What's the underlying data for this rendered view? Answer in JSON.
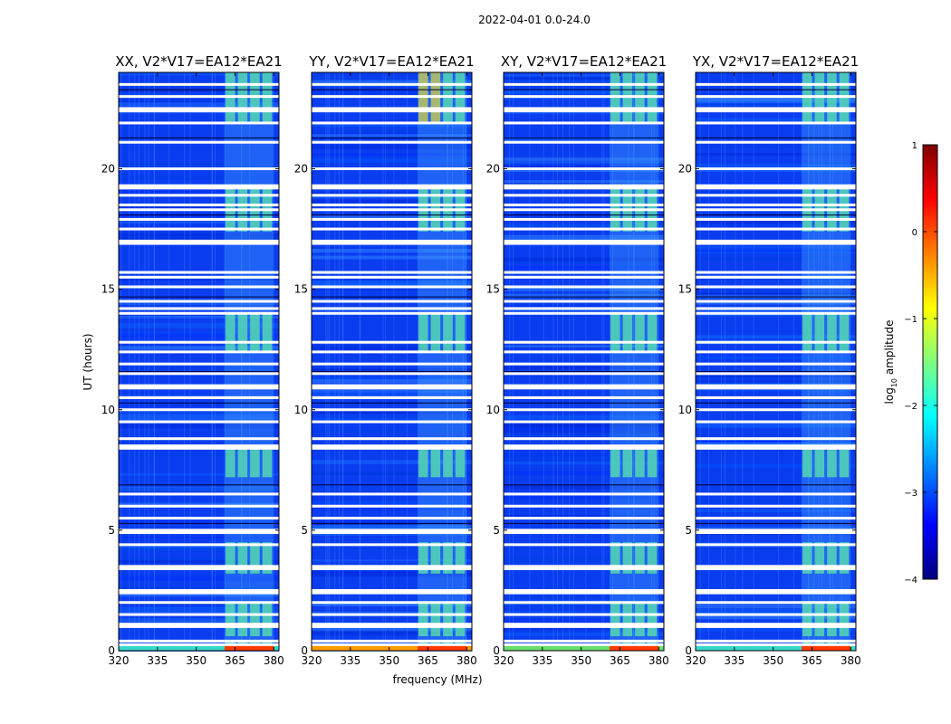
{
  "chart_data": {
    "type": "heatmap",
    "suptitle": "2022-04-01 0.0-24.0",
    "xlabel": "frequency (MHz)",
    "ylabel": "UT (hours)",
    "xlim": [
      320,
      382
    ],
    "ylim": [
      0,
      24
    ],
    "xticks": [
      320,
      335,
      350,
      365,
      380
    ],
    "yticks": [
      0,
      5,
      10,
      15,
      20
    ],
    "panels": [
      {
        "title": "XX, V2*V17=EA12*EA21",
        "hot_band_mhz": [
          361,
          380
        ]
      },
      {
        "title": "YY, V2*V17=EA12*EA21",
        "hot_band_mhz": [
          361,
          380
        ]
      },
      {
        "title": "XY, V2*V17=EA12*EA21",
        "hot_band_mhz": [
          361,
          380
        ]
      },
      {
        "title": "YX, V2*V17=EA12*EA21",
        "hot_band_mhz": [
          361,
          380
        ]
      }
    ],
    "colorbar": {
      "label": "log10 amplitude",
      "range": [
        -4,
        1
      ],
      "ticks": [
        1,
        0,
        -1,
        -2,
        -3,
        -4
      ],
      "colormap": "jet"
    },
    "flagged_ut_hours": [
      0.25,
      0.4,
      1.0,
      1.1,
      1.5,
      2.0,
      2.4,
      2.5,
      3.4,
      3.5,
      4.4,
      4.9,
      5.0,
      5.5,
      6.0,
      6.5,
      8.4,
      8.5,
      8.8,
      9.5,
      10.0,
      10.5,
      10.9,
      11.0,
      11.5,
      11.9,
      12.4,
      12.8,
      14.0,
      14.2,
      14.5,
      15.1,
      15.5,
      15.7,
      16.9,
      17.0,
      17.5,
      17.9,
      18.3,
      18.5,
      18.9,
      19.2,
      19.3,
      20.0,
      21.1,
      21.9,
      22.4,
      22.5,
      23.0,
      23.5
    ],
    "active_ut_hours": [
      [
        0.0,
        0.4
      ],
      [
        0.6,
        2.0
      ],
      [
        3.2,
        4.5
      ],
      [
        7.2,
        8.5
      ],
      [
        12.4,
        14.0
      ],
      [
        17.4,
        19.2
      ],
      [
        21.9,
        24.0
      ]
    ]
  }
}
